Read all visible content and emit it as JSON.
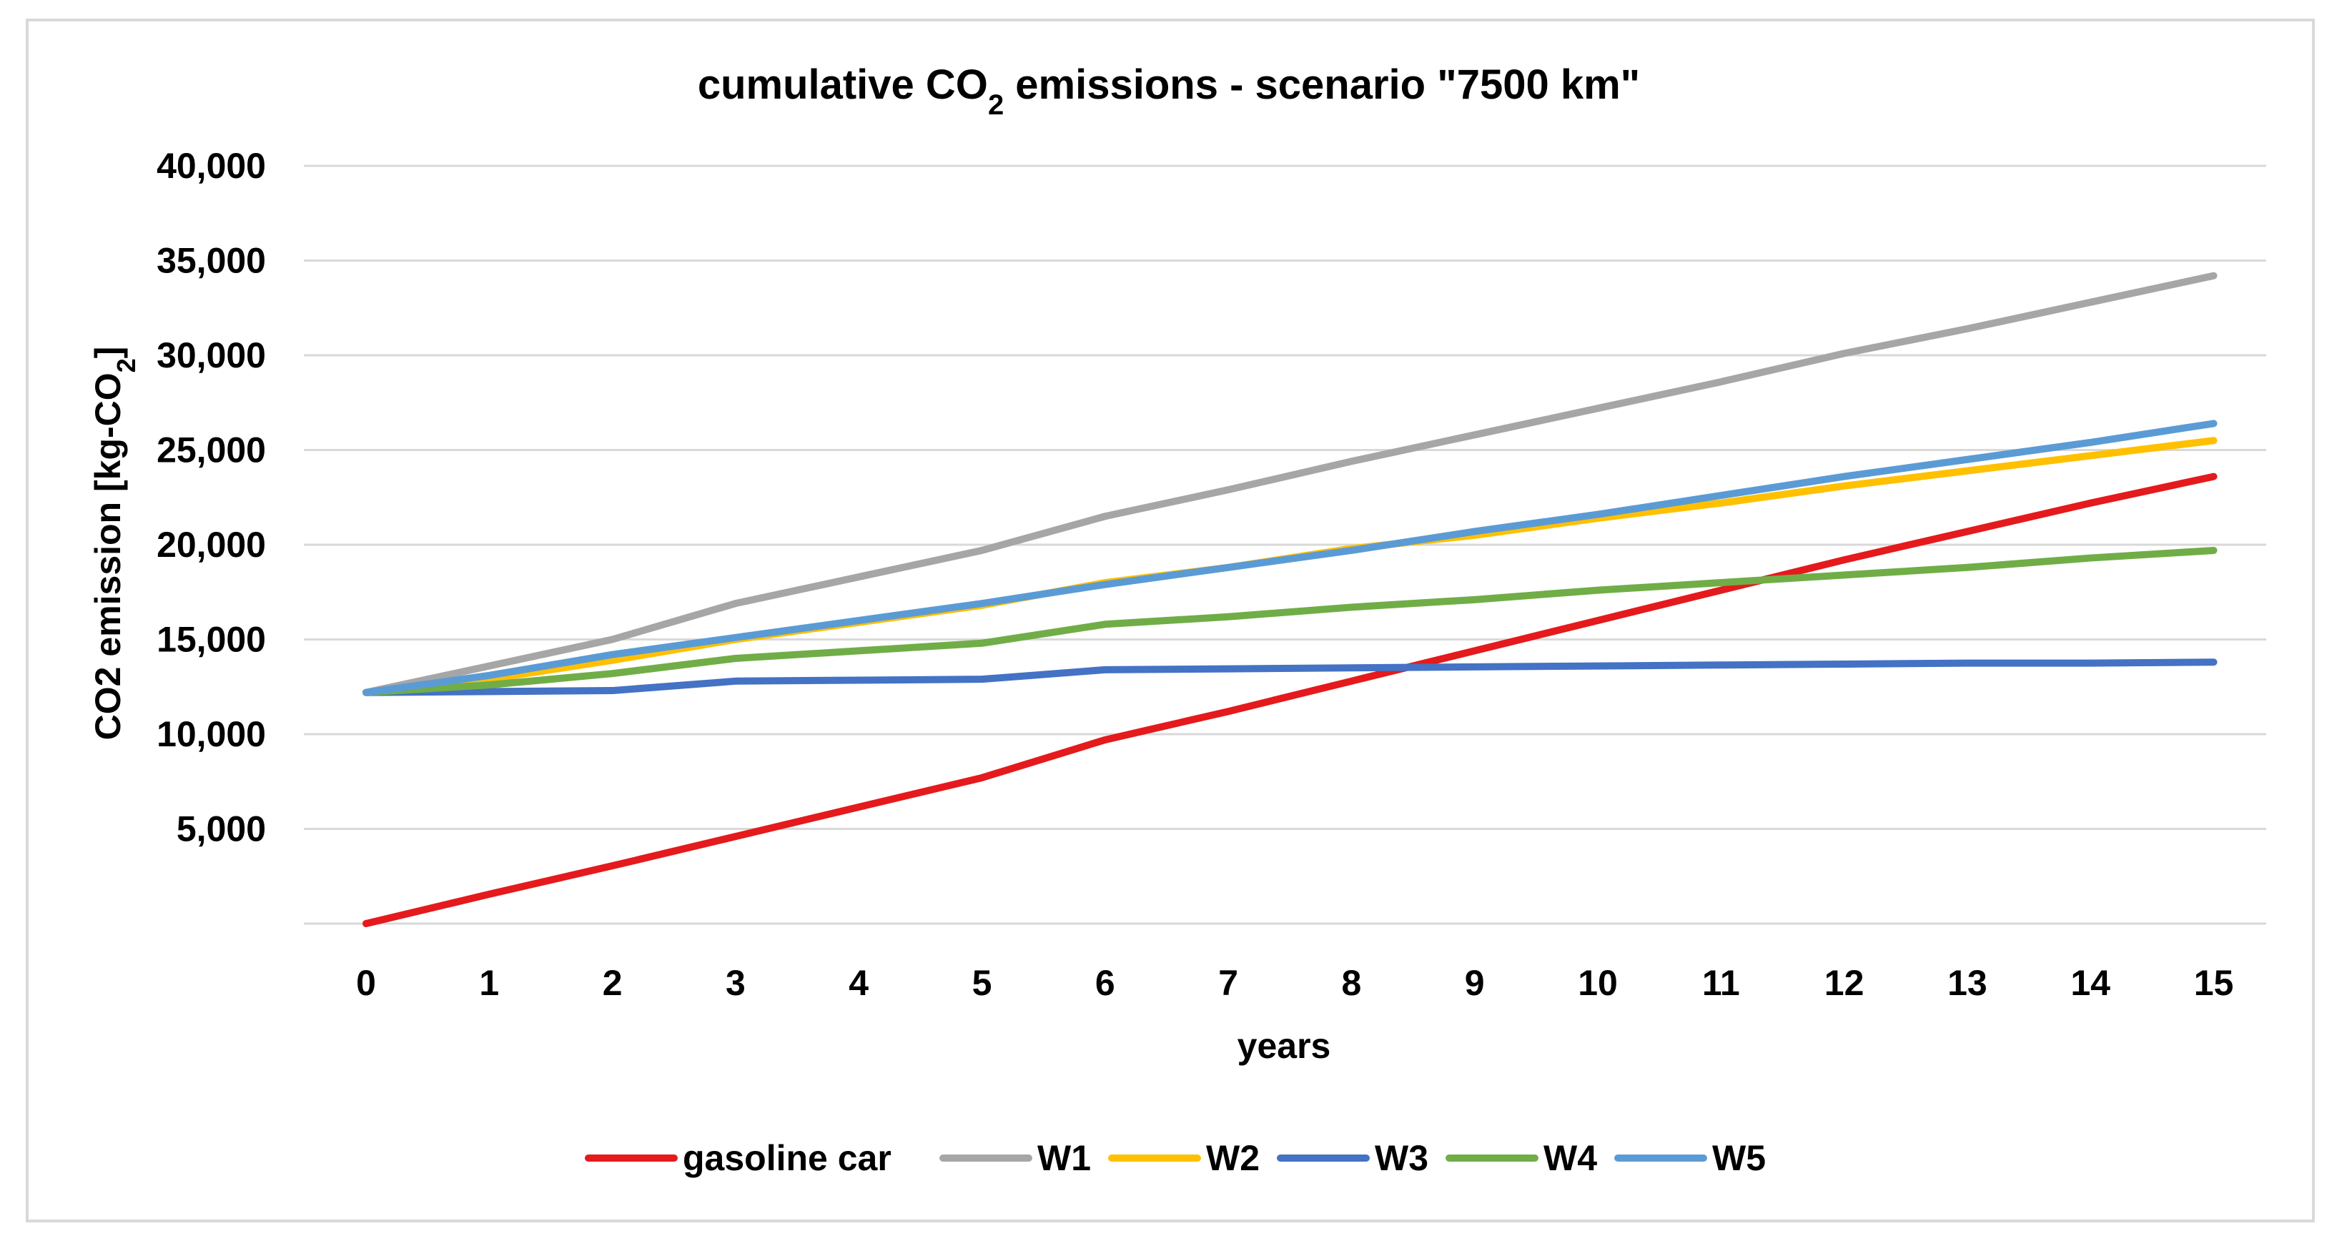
{
  "chart_data": {
    "type": "line",
    "title": "cumulative CO₂ emissions - scenario \"7500 km\"",
    "xlabel": "years",
    "ylabel": "CO2 emission [kg-CO₂]",
    "categories": [
      "0",
      "1",
      "2",
      "3",
      "4",
      "5",
      "6",
      "7",
      "8",
      "9",
      "10",
      "11",
      "12",
      "13",
      "14",
      "15"
    ],
    "x": [
      0,
      1,
      2,
      3,
      4,
      5,
      6,
      7,
      8,
      9,
      10,
      11,
      12,
      13,
      14,
      15
    ],
    "ylim": [
      0,
      40000
    ],
    "yticks": [
      5000,
      10000,
      15000,
      20000,
      25000,
      30000,
      35000,
      40000
    ],
    "ytick_labels": [
      "5,000",
      "10,000",
      "15,000",
      "20,000",
      "25,000",
      "30,000",
      "35,000",
      "40,000"
    ],
    "grid": true,
    "legend_position": "bottom",
    "series": [
      {
        "name": "gasoline car",
        "color": "#e41a1c",
        "values": [
          0,
          1550,
          3050,
          4600,
          6150,
          7700,
          9700,
          11200,
          12800,
          14400,
          16000,
          17600,
          19200,
          20700,
          22200,
          23600
        ]
      },
      {
        "name": "W1",
        "color": "#a6a6a6",
        "values": [
          12200,
          13600,
          15000,
          16900,
          18300,
          19700,
          21500,
          22900,
          24400,
          25800,
          27200,
          28600,
          30100,
          31400,
          32800,
          34200
        ]
      },
      {
        "name": "W2",
        "color": "#ffc000",
        "values": [
          12200,
          12900,
          13900,
          15000,
          15900,
          16800,
          18000,
          18800,
          19800,
          20500,
          21400,
          22200,
          23100,
          23900,
          24700,
          25500
        ]
      },
      {
        "name": "W3",
        "color": "#4472c4",
        "values": [
          12200,
          12250,
          12300,
          12800,
          12850,
          12900,
          13400,
          13450,
          13500,
          13550,
          13600,
          13650,
          13700,
          13750,
          13750,
          13800
        ]
      },
      {
        "name": "W4",
        "color": "#70ad47",
        "values": [
          12200,
          12600,
          13200,
          14000,
          14400,
          14800,
          15800,
          16200,
          16700,
          17100,
          17600,
          18000,
          18400,
          18800,
          19300,
          19700
        ]
      },
      {
        "name": "W5",
        "color": "#5b9bd5",
        "values": [
          12200,
          13100,
          14200,
          15100,
          16000,
          16900,
          17900,
          18800,
          19700,
          20700,
          21600,
          22600,
          23600,
          24500,
          25400,
          26400
        ]
      }
    ]
  }
}
